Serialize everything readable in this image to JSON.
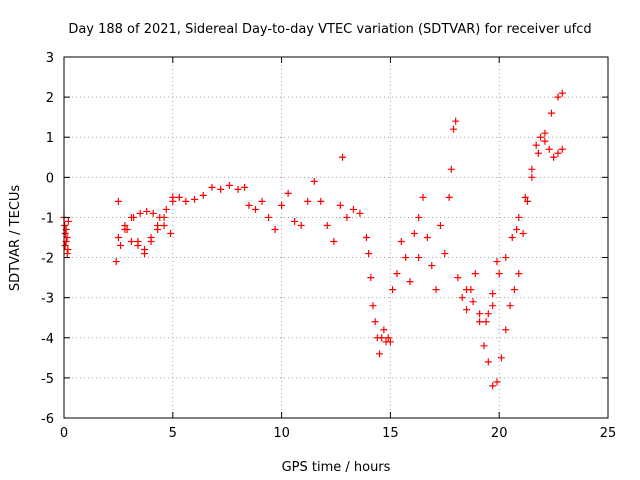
{
  "chart_data": {
    "type": "scatter",
    "title": "Day 188 of 2021, Sidereal Day-to-day VTEC variation (SDTVAR) for receiver ufcd",
    "xlabel": "GPS time / hours",
    "ylabel": "SDTVAR / TECUs",
    "xlim": [
      0,
      25
    ],
    "ylim": [
      -6,
      3
    ],
    "x_ticks": [
      "0",
      "5",
      "10",
      "15",
      "20",
      "25"
    ],
    "y_ticks": [
      "-6",
      "-5",
      "-4",
      "-3",
      "-2",
      "-1",
      "0",
      "1",
      "2",
      "3"
    ],
    "grid": true,
    "legend": "none",
    "marker": "+",
    "series": [
      {
        "color": "#ff0000",
        "x": [
          0.0,
          0.03,
          0.06,
          0.1,
          0.14,
          0.18,
          0.2,
          0.05,
          0.1,
          0.15,
          2.4,
          2.6,
          2.9,
          3.2,
          3.5,
          3.8,
          4.1,
          4.4,
          4.7,
          5.0,
          5.3,
          5.6,
          6.0,
          6.4,
          6.8,
          7.2,
          7.6,
          8.0,
          8.3,
          2.5,
          2.8,
          3.1,
          3.4,
          3.7,
          4.0,
          4.3,
          4.6,
          4.9,
          2.5,
          2.8,
          3.1,
          3.4,
          3.7,
          4.0,
          4.3,
          4.6,
          5.0,
          8.5,
          8.8,
          9.1,
          9.4,
          9.7,
          10.0,
          10.3,
          10.6,
          10.9,
          11.2,
          11.5,
          11.8,
          12.1,
          12.4,
          12.7,
          13.0,
          13.3,
          13.6,
          13.9,
          14.0,
          14.1,
          14.2,
          14.3,
          14.4,
          14.5,
          14.6,
          14.7,
          14.8,
          14.9,
          15.0,
          15.1,
          15.3,
          15.5,
          15.7,
          15.9,
          16.1,
          16.3,
          16.5,
          16.7,
          16.9,
          17.1,
          17.3,
          17.5,
          17.7,
          17.8,
          17.9,
          18.0,
          18.1,
          18.3,
          18.5,
          18.7,
          18.9,
          19.1,
          19.3,
          19.5,
          19.7,
          19.9,
          19.5,
          19.7,
          19.9,
          20.1,
          20.3,
          20.5,
          20.7,
          20.9,
          21.1,
          21.3,
          21.5,
          21.7,
          21.9,
          22.1,
          22.3,
          22.5,
          22.7,
          22.9,
          18.5,
          18.8,
          19.1,
          19.4,
          19.7,
          20.0,
          20.3,
          20.6,
          20.9,
          21.2,
          21.5,
          21.8,
          22.1,
          22.4,
          22.7,
          22.9,
          12.8,
          16.3,
          20.8
        ],
        "y": [
          -1.0,
          -1.2,
          -1.4,
          -1.6,
          -1.5,
          -1.8,
          -1.1,
          -1.7,
          -1.3,
          -1.9,
          -2.1,
          -1.7,
          -1.3,
          -1.0,
          -0.9,
          -0.85,
          -0.9,
          -1.0,
          -0.8,
          -0.6,
          -0.5,
          -0.6,
          -0.55,
          -0.45,
          -0.25,
          -0.3,
          -0.2,
          -0.3,
          -0.25,
          -0.6,
          -1.2,
          -1.6,
          -1.7,
          -1.8,
          -1.5,
          -1.3,
          -1.2,
          -1.4,
          -1.5,
          -1.3,
          -1.0,
          -1.6,
          -1.9,
          -1.6,
          -1.2,
          -1.0,
          -0.5,
          -0.7,
          -0.8,
          -0.6,
          -1.0,
          -1.3,
          -0.7,
          -0.4,
          -1.1,
          -1.2,
          -0.6,
          -0.1,
          -0.6,
          -1.2,
          -1.6,
          -0.7,
          -1.0,
          -0.8,
          -0.9,
          -1.5,
          -1.9,
          -2.5,
          -3.2,
          -3.6,
          -4.0,
          -4.4,
          -4.0,
          -3.8,
          -4.1,
          -4.0,
          -4.1,
          -2.8,
          -2.4,
          -1.6,
          -2.0,
          -2.6,
          -1.4,
          -2.0,
          -0.5,
          -1.5,
          -2.2,
          -2.8,
          -1.2,
          -1.9,
          -0.5,
          0.2,
          1.2,
          1.4,
          -2.5,
          -3.0,
          -3.3,
          -2.8,
          -2.4,
          -3.6,
          -4.2,
          -3.4,
          -2.9,
          -2.1,
          -4.6,
          -5.2,
          -5.1,
          -4.5,
          -3.8,
          -3.2,
          -2.8,
          -2.4,
          -1.4,
          -0.6,
          0.2,
          0.8,
          1.0,
          0.9,
          0.7,
          0.5,
          0.6,
          0.7,
          -2.8,
          -3.1,
          -3.4,
          -3.6,
          -3.2,
          -2.4,
          -2.0,
          -1.5,
          -1.0,
          -0.5,
          0.0,
          0.6,
          1.1,
          1.6,
          2.0,
          2.1,
          0.5,
          -1.0,
          -1.3
        ]
      }
    ]
  }
}
